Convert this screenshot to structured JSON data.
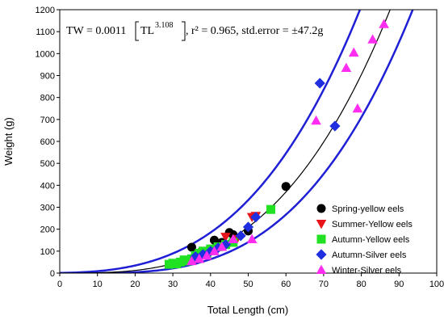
{
  "chart_data": {
    "type": "scatter",
    "title": "",
    "xlabel": "Total Length (cm)",
    "ylabel": "Weight (g)",
    "xlim": [
      0,
      100
    ],
    "ylim": [
      0,
      1200
    ],
    "xticks": [
      0,
      10,
      20,
      30,
      40,
      50,
      60,
      70,
      80,
      90,
      100
    ],
    "yticks": [
      0,
      100,
      200,
      300,
      400,
      500,
      600,
      700,
      800,
      900,
      1000,
      1100,
      1200
    ],
    "grid": false,
    "legend_position": "bottom-right",
    "equation": {
      "lhs": "TW = 0.0011",
      "base": "TL",
      "exponent": "3.108",
      "rest": ", r² = 0.965, std.error = ±47.2g"
    },
    "fit": {
      "a": 0.0011,
      "b": 3.108,
      "std_error": 47.2,
      "color": "#000000",
      "band_color": "#1f1fd6"
    },
    "series": [
      {
        "name": "Spring-yellow eels",
        "marker": "circle",
        "color": "#000000",
        "points": [
          [
            35,
            118
          ],
          [
            41,
            150
          ],
          [
            43,
            140
          ],
          [
            45,
            185
          ],
          [
            46,
            175
          ],
          [
            50,
            192
          ],
          [
            60,
            395
          ]
        ]
      },
      {
        "name": "Summer-Yellow eels",
        "marker": "triangle-down",
        "color": "#e8141b",
        "points": [
          [
            38,
            95
          ],
          [
            44,
            165
          ],
          [
            47,
            155
          ],
          [
            51,
            255
          ],
          [
            52,
            260
          ]
        ]
      },
      {
        "name": "Autumn-Yellow eels",
        "marker": "square",
        "color": "#22e022",
        "points": [
          [
            29,
            40
          ],
          [
            30,
            45
          ],
          [
            31,
            42
          ],
          [
            32,
            50
          ],
          [
            33,
            60
          ],
          [
            34,
            55
          ],
          [
            35,
            65
          ],
          [
            36,
            80
          ],
          [
            37,
            90
          ],
          [
            38,
            100
          ],
          [
            39,
            90
          ],
          [
            40,
            110
          ],
          [
            42,
            120
          ],
          [
            44,
            130
          ],
          [
            46,
            140
          ],
          [
            56,
            290
          ]
        ]
      },
      {
        "name": "Autumn-Silver eels",
        "marker": "diamond",
        "color": "#1f2fe0",
        "points": [
          [
            36,
            75
          ],
          [
            38,
            85
          ],
          [
            40,
            100
          ],
          [
            42,
            115
          ],
          [
            44,
            130
          ],
          [
            48,
            170
          ],
          [
            50,
            210
          ],
          [
            52,
            255
          ],
          [
            69,
            865
          ],
          [
            73,
            670
          ]
        ]
      },
      {
        "name": "Winter-Silver eels",
        "marker": "triangle-up",
        "color": "#ff2df0",
        "points": [
          [
            35,
            55
          ],
          [
            37,
            65
          ],
          [
            39,
            80
          ],
          [
            41,
            100
          ],
          [
            43,
            120
          ],
          [
            46,
            155
          ],
          [
            51,
            155
          ],
          [
            68,
            695
          ],
          [
            76,
            935
          ],
          [
            78,
            1005
          ],
          [
            79,
            750
          ],
          [
            83,
            1065
          ],
          [
            86,
            1135
          ]
        ]
      }
    ]
  }
}
